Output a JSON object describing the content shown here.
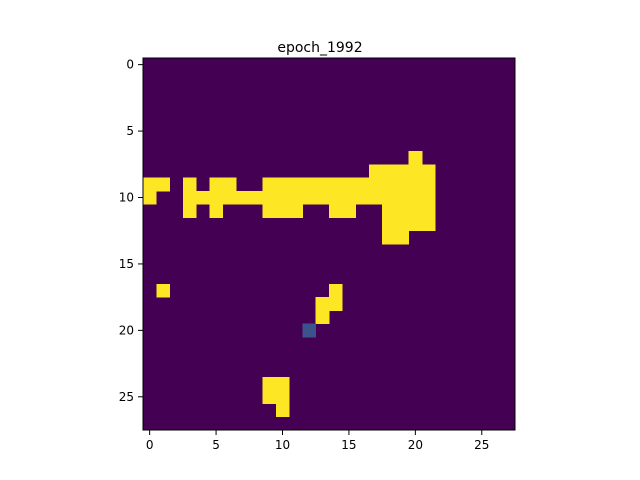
{
  "chart_data": {
    "type": "heatmap",
    "title": "epoch_1992",
    "xlabel": "",
    "ylabel": "",
    "rows": 28,
    "cols": 28,
    "xlim": [
      -0.5,
      27.5
    ],
    "ylim": [
      27.5,
      -0.5
    ],
    "x_ticks": [
      0,
      5,
      10,
      15,
      20,
      25
    ],
    "y_ticks": [
      0,
      5,
      10,
      15,
      20,
      25
    ],
    "colormap": "viridis",
    "colors": {
      "background": "#440154",
      "foreground": "#fde725",
      "mid": "#3b528b",
      "axes": "#000000"
    },
    "grid": false,
    "legend": "none",
    "background_value": 0,
    "cells": [
      {
        "row": 7,
        "col": 20,
        "value": 1
      },
      {
        "row": 8,
        "col": 17,
        "value": 1
      },
      {
        "row": 8,
        "col": 18,
        "value": 1
      },
      {
        "row": 8,
        "col": 19,
        "value": 1
      },
      {
        "row": 8,
        "col": 20,
        "value": 1
      },
      {
        "row": 8,
        "col": 21,
        "value": 1
      },
      {
        "row": 9,
        "col": 0,
        "value": 1
      },
      {
        "row": 9,
        "col": 1,
        "value": 1
      },
      {
        "row": 9,
        "col": 3,
        "value": 1
      },
      {
        "row": 9,
        "col": 5,
        "value": 1
      },
      {
        "row": 9,
        "col": 6,
        "value": 1
      },
      {
        "row": 9,
        "col": 9,
        "value": 1
      },
      {
        "row": 9,
        "col": 10,
        "value": 1
      },
      {
        "row": 9,
        "col": 11,
        "value": 1
      },
      {
        "row": 9,
        "col": 12,
        "value": 1
      },
      {
        "row": 9,
        "col": 13,
        "value": 1
      },
      {
        "row": 9,
        "col": 14,
        "value": 1
      },
      {
        "row": 9,
        "col": 15,
        "value": 1
      },
      {
        "row": 9,
        "col": 16,
        "value": 1
      },
      {
        "row": 9,
        "col": 17,
        "value": 1
      },
      {
        "row": 9,
        "col": 18,
        "value": 1
      },
      {
        "row": 9,
        "col": 19,
        "value": 1
      },
      {
        "row": 9,
        "col": 20,
        "value": 1
      },
      {
        "row": 9,
        "col": 21,
        "value": 1
      },
      {
        "row": 10,
        "col": 0,
        "value": 1
      },
      {
        "row": 10,
        "col": 3,
        "value": 1
      },
      {
        "row": 10,
        "col": 4,
        "value": 1
      },
      {
        "row": 10,
        "col": 5,
        "value": 1
      },
      {
        "row": 10,
        "col": 6,
        "value": 1
      },
      {
        "row": 10,
        "col": 7,
        "value": 1
      },
      {
        "row": 10,
        "col": 8,
        "value": 1
      },
      {
        "row": 10,
        "col": 9,
        "value": 1
      },
      {
        "row": 10,
        "col": 10,
        "value": 1
      },
      {
        "row": 10,
        "col": 11,
        "value": 1
      },
      {
        "row": 10,
        "col": 12,
        "value": 1
      },
      {
        "row": 10,
        "col": 13,
        "value": 1
      },
      {
        "row": 10,
        "col": 14,
        "value": 1
      },
      {
        "row": 10,
        "col": 15,
        "value": 1
      },
      {
        "row": 10,
        "col": 16,
        "value": 1
      },
      {
        "row": 10,
        "col": 17,
        "value": 1
      },
      {
        "row": 10,
        "col": 18,
        "value": 1
      },
      {
        "row": 10,
        "col": 19,
        "value": 1
      },
      {
        "row": 10,
        "col": 20,
        "value": 1
      },
      {
        "row": 10,
        "col": 21,
        "value": 1
      },
      {
        "row": 11,
        "col": 3,
        "value": 1
      },
      {
        "row": 11,
        "col": 5,
        "value": 1
      },
      {
        "row": 11,
        "col": 9,
        "value": 1
      },
      {
        "row": 11,
        "col": 10,
        "value": 1
      },
      {
        "row": 11,
        "col": 11,
        "value": 1
      },
      {
        "row": 11,
        "col": 14,
        "value": 1
      },
      {
        "row": 11,
        "col": 15,
        "value": 1
      },
      {
        "row": 11,
        "col": 18,
        "value": 1
      },
      {
        "row": 11,
        "col": 19,
        "value": 1
      },
      {
        "row": 11,
        "col": 20,
        "value": 1
      },
      {
        "row": 11,
        "col": 21,
        "value": 1
      },
      {
        "row": 12,
        "col": 18,
        "value": 1
      },
      {
        "row": 12,
        "col": 19,
        "value": 1
      },
      {
        "row": 12,
        "col": 20,
        "value": 1
      },
      {
        "row": 12,
        "col": 21,
        "value": 1
      },
      {
        "row": 13,
        "col": 18,
        "value": 1
      },
      {
        "row": 13,
        "col": 19,
        "value": 1
      },
      {
        "row": 17,
        "col": 1,
        "value": 1
      },
      {
        "row": 17,
        "col": 14,
        "value": 1
      },
      {
        "row": 18,
        "col": 13,
        "value": 1
      },
      {
        "row": 18,
        "col": 14,
        "value": 1
      },
      {
        "row": 19,
        "col": 13,
        "value": 1
      },
      {
        "row": 20,
        "col": 12,
        "value": 0.2
      },
      {
        "row": 24,
        "col": 9,
        "value": 1
      },
      {
        "row": 24,
        "col": 10,
        "value": 1
      },
      {
        "row": 25,
        "col": 9,
        "value": 1
      },
      {
        "row": 25,
        "col": 10,
        "value": 1
      },
      {
        "row": 26,
        "col": 10,
        "value": 1
      }
    ]
  }
}
